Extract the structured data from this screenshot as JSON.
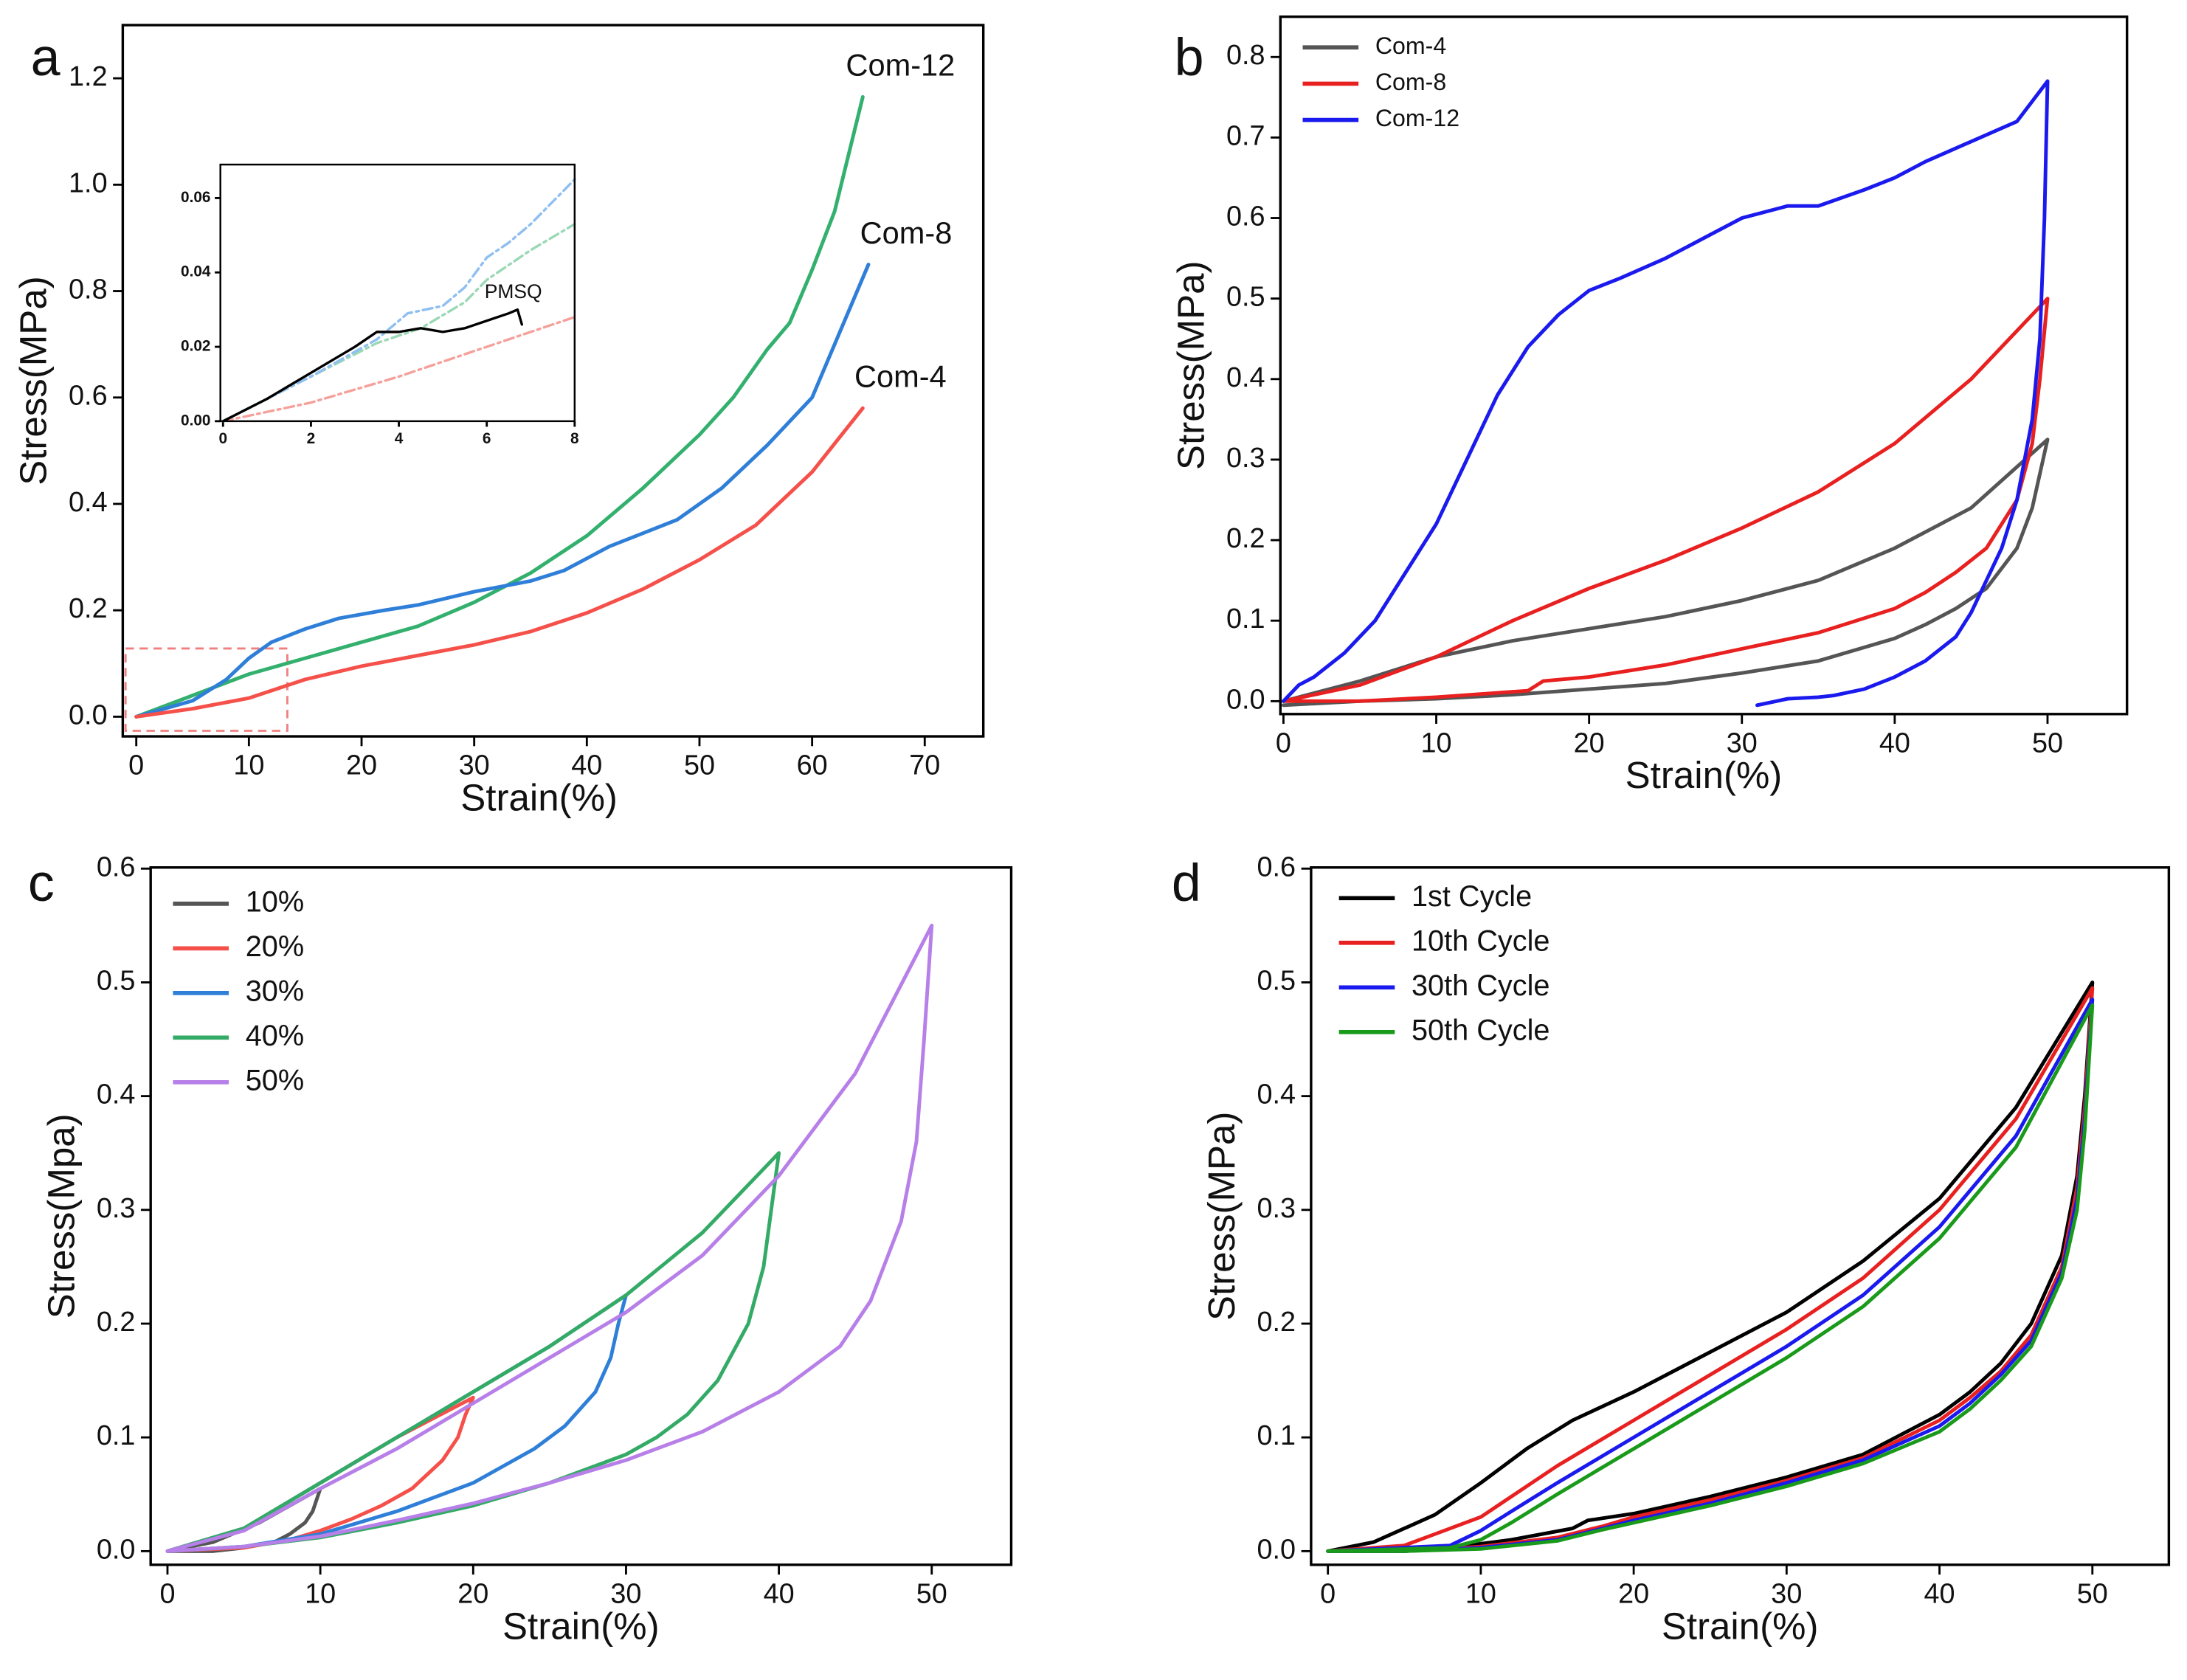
{
  "chart_data": [
    {
      "type": "line",
      "label": "a",
      "x_label": "Strain(%)",
      "y_label": "Stress(MPa)",
      "legend": "line-end",
      "xlim": [
        -1.2,
        75.2
      ],
      "ylim": [
        -0.037,
        1.3
      ],
      "xticks": [
        0,
        10,
        20,
        30,
        40,
        50,
        60,
        70
      ],
      "yticks": [
        {
          "value": 0,
          "label": "0.0"
        },
        0.2,
        0.4,
        0.6,
        0.8,
        {
          "value": 1,
          "label": "1.0"
        },
        1.2
      ],
      "series": [
        {
          "name": "Com-12",
          "color": "#33b06e",
          "x": [
            0,
            5,
            10,
            15,
            20,
            25,
            30,
            35,
            40,
            45,
            50,
            53,
            56,
            58,
            60,
            62,
            64.5
          ],
          "values": [
            0,
            0.04,
            0.08,
            0.11,
            0.14,
            0.17,
            0.215,
            0.27,
            0.34,
            0.43,
            0.53,
            0.6,
            0.69,
            0.74,
            0.84,
            0.95,
            1.165
          ]
        },
        {
          "name": "Com-8",
          "color": "#2f7fd8",
          "x": [
            0,
            5,
            8,
            10,
            12,
            15,
            18,
            22,
            25,
            30,
            35,
            38,
            42,
            45,
            48,
            52,
            56,
            60,
            65
          ],
          "values": [
            0,
            0.03,
            0.07,
            0.11,
            0.14,
            0.165,
            0.185,
            0.2,
            0.21,
            0.235,
            0.255,
            0.275,
            0.32,
            0.345,
            0.37,
            0.43,
            0.51,
            0.6,
            0.85
          ]
        },
        {
          "name": "Com-4",
          "color": "#f5504a",
          "x": [
            0,
            5,
            10,
            15,
            20,
            25,
            30,
            35,
            40,
            45,
            50,
            55,
            60,
            64.5
          ],
          "values": [
            0,
            0.015,
            0.035,
            0.07,
            0.095,
            0.115,
            0.135,
            0.16,
            0.195,
            0.24,
            0.295,
            0.36,
            0.46,
            0.58
          ]
        }
      ]
    },
    {
      "type": "line",
      "legend": "none",
      "xlim": [
        -0.06,
        8
      ],
      "ylim": [
        0,
        0.069
      ],
      "xticks": [
        0,
        2,
        4,
        6,
        8
      ],
      "yticks": [
        {
          "value": 0,
          "label": "0.00"
        },
        0.02,
        0.04,
        0.06
      ],
      "annotations": [
        {
          "text": "PMSQ"
        }
      ],
      "series": [
        {
          "color": "#f5a09a",
          "dash": "dash-dot",
          "x": [
            0,
            2,
            4,
            6,
            8
          ],
          "values": [
            0,
            0.005,
            0.012,
            0.02,
            0.028
          ]
        },
        {
          "color": "#9ad8b6",
          "dash": "dash-dot",
          "x": [
            0,
            2,
            3.5,
            4.5,
            5.5,
            6,
            7,
            8
          ],
          "values": [
            0,
            0.012,
            0.021,
            0.025,
            0.032,
            0.038,
            0.046,
            0.053
          ]
        },
        {
          "color": "#8fbff0",
          "dash": "dash-dot",
          "x": [
            0,
            2,
            3.5,
            4.2,
            5,
            5.5,
            6,
            6.5,
            7,
            8
          ],
          "values": [
            0,
            0.012,
            0.022,
            0.029,
            0.031,
            0.036,
            0.044,
            0.048,
            0.053,
            0.065
          ]
        },
        {
          "color": "#000000",
          "x": [
            0,
            1,
            2,
            3,
            3.5,
            4,
            4.5,
            5,
            5.5,
            6,
            6.5,
            6.7,
            6.8
          ],
          "values": [
            0,
            0.006,
            0.013,
            0.02,
            0.024,
            0.024,
            0.025,
            0.024,
            0.025,
            0.027,
            0.029,
            0.03,
            0.026
          ]
        }
      ]
    },
    {
      "type": "line",
      "label": "b",
      "x_label": "Strain(%)",
      "y_label": "Stress(MPa)",
      "legend": "upper left",
      "xlim": [
        -0.2,
        55.2
      ],
      "ylim": [
        -0.016,
        0.85
      ],
      "xticks": [
        0,
        10,
        20,
        30,
        40,
        50
      ],
      "yticks": [
        {
          "value": 0,
          "label": "0.0"
        },
        0.1,
        0.2,
        0.3,
        0.4,
        0.5,
        0.6,
        0.7,
        0.8
      ],
      "series": [
        {
          "name": "Com-4",
          "color": "#555555",
          "x": [
            0,
            5,
            10,
            15,
            20,
            25,
            30,
            35,
            40,
            45,
            50,
            49,
            48,
            46,
            44,
            42,
            40,
            35,
            30,
            25,
            20,
            15,
            10,
            5,
            0
          ],
          "values": [
            0,
            0.025,
            0.055,
            0.075,
            0.09,
            0.105,
            0.125,
            0.15,
            0.19,
            0.24,
            0.325,
            0.24,
            0.19,
            0.14,
            0.115,
            0.095,
            0.078,
            0.05,
            0.035,
            0.022,
            0.015,
            0.008,
            0.003,
            0,
            -0.005
          ]
        },
        {
          "name": "Com-8",
          "color": "#e82020",
          "x": [
            0,
            5,
            10,
            15,
            20,
            25,
            30,
            35,
            40,
            45,
            50,
            49.5,
            49,
            48,
            46,
            44,
            42,
            40,
            35,
            30,
            25,
            20,
            17,
            16,
            10,
            5,
            0
          ],
          "values": [
            0,
            0.02,
            0.055,
            0.1,
            0.14,
            0.175,
            0.215,
            0.26,
            0.32,
            0.4,
            0.5,
            0.4,
            0.32,
            0.25,
            0.19,
            0.16,
            0.135,
            0.115,
            0.085,
            0.065,
            0.045,
            0.03,
            0.025,
            0.013,
            0.005,
            0,
            0
          ]
        },
        {
          "name": "Com-12",
          "color": "#1a1aee",
          "x": [
            0,
            1,
            2,
            4,
            6,
            8,
            10,
            12,
            14,
            16,
            18,
            20,
            22,
            25,
            28,
            30,
            33,
            35,
            38,
            40,
            42,
            45,
            48,
            50,
            49.8,
            49.5,
            49,
            48,
            47,
            46,
            45,
            44,
            42,
            40,
            38,
            36,
            35,
            33,
            31
          ],
          "values": [
            0,
            0.02,
            0.03,
            0.06,
            0.1,
            0.16,
            0.22,
            0.3,
            0.38,
            0.44,
            0.48,
            0.51,
            0.525,
            0.55,
            0.58,
            0.6,
            0.615,
            0.615,
            0.635,
            0.65,
            0.67,
            0.695,
            0.72,
            0.77,
            0.6,
            0.45,
            0.35,
            0.25,
            0.19,
            0.15,
            0.11,
            0.08,
            0.05,
            0.03,
            0.015,
            0.007,
            0.005,
            0.003,
            -0.005
          ]
        }
      ]
    },
    {
      "type": "line",
      "label": "c",
      "x_label": "Strain(%)",
      "y_label": "Stress(Mpa)",
      "legend": "upper left",
      "xlim": [
        -1.1,
        55.2
      ],
      "ylim": [
        -0.012,
        0.601
      ],
      "xticks": [
        0,
        10,
        20,
        30,
        40,
        50
      ],
      "yticks": [
        {
          "value": 0,
          "label": "0.0"
        },
        0.1,
        0.2,
        0.3,
        0.4,
        0.5,
        0.6
      ],
      "series": [
        {
          "name": "10%",
          "color": "#555555",
          "x": [
            0,
            3,
            6,
            8,
            10,
            9.5,
            9,
            8,
            7,
            5,
            3,
            0
          ],
          "values": [
            0,
            0.008,
            0.025,
            0.04,
            0.055,
            0.035,
            0.025,
            0.015,
            0.008,
            0.003,
            0,
            0
          ]
        },
        {
          "name": "20%",
          "color": "#f5504a",
          "x": [
            0,
            5,
            10,
            15,
            20,
            19.5,
            19,
            18,
            16,
            14,
            12,
            10,
            8,
            5,
            0
          ],
          "values": [
            0,
            0.02,
            0.06,
            0.1,
            0.135,
            0.12,
            0.1,
            0.08,
            0.055,
            0.04,
            0.028,
            0.018,
            0.01,
            0.003,
            0
          ]
        },
        {
          "name": "30%",
          "color": "#2f7fd8",
          "x": [
            0,
            5,
            10,
            15,
            20,
            25,
            30,
            29.5,
            29,
            28,
            26,
            24,
            22,
            20,
            15,
            10,
            5,
            0
          ],
          "values": [
            0,
            0.02,
            0.06,
            0.1,
            0.14,
            0.18,
            0.225,
            0.2,
            0.17,
            0.14,
            0.11,
            0.09,
            0.075,
            0.06,
            0.035,
            0.015,
            0.004,
            0
          ]
        },
        {
          "name": "40%",
          "color": "#33aa66",
          "x": [
            0,
            5,
            10,
            15,
            20,
            25,
            30,
            35,
            40,
            39.5,
            39,
            38,
            36,
            34,
            32,
            30,
            25,
            20,
            15,
            10,
            5,
            0
          ],
          "values": [
            0,
            0.02,
            0.06,
            0.1,
            0.14,
            0.18,
            0.225,
            0.28,
            0.35,
            0.3,
            0.25,
            0.2,
            0.15,
            0.12,
            0.1,
            0.085,
            0.06,
            0.04,
            0.025,
            0.012,
            0.004,
            0
          ]
        },
        {
          "name": "50%",
          "color": "#b77fe8",
          "x": [
            0,
            5,
            10,
            15,
            20,
            25,
            30,
            35,
            40,
            45,
            50,
            49.5,
            49,
            48,
            46,
            44,
            42,
            40,
            35,
            30,
            25,
            20,
            15,
            10,
            5,
            0
          ],
          "values": [
            0,
            0.018,
            0.055,
            0.09,
            0.13,
            0.17,
            0.21,
            0.26,
            0.33,
            0.42,
            0.55,
            0.45,
            0.36,
            0.29,
            0.22,
            0.18,
            0.16,
            0.14,
            0.105,
            0.08,
            0.06,
            0.042,
            0.027,
            0.013,
            0.004,
            0
          ]
        }
      ]
    },
    {
      "type": "line",
      "label": "d",
      "x_label": "Strain(%)",
      "y_label": "Stress(MPa)",
      "legend": "upper left",
      "xlim": [
        -1.1,
        55
      ],
      "ylim": [
        -0.012,
        0.601
      ],
      "xticks": [
        0,
        10,
        20,
        30,
        40,
        50
      ],
      "yticks": [
        {
          "value": 0,
          "label": "0.0"
        },
        0.1,
        0.2,
        0.3,
        0.4,
        0.5,
        0.6
      ],
      "series": [
        {
          "name": "1st Cycle",
          "color": "#000000",
          "x": [
            0,
            3,
            5,
            7,
            10,
            13,
            16,
            20,
            25,
            30,
            35,
            40,
            45,
            50,
            49.5,
            49,
            48,
            46,
            44,
            42,
            40,
            35,
            30,
            25,
            20,
            17,
            16,
            12,
            8,
            5,
            0
          ],
          "values": [
            0,
            0.008,
            0.02,
            0.032,
            0.06,
            0.09,
            0.115,
            0.14,
            0.175,
            0.21,
            0.255,
            0.31,
            0.39,
            0.5,
            0.4,
            0.33,
            0.26,
            0.2,
            0.165,
            0.14,
            0.12,
            0.085,
            0.065,
            0.048,
            0.033,
            0.027,
            0.02,
            0.01,
            0.003,
            0,
            0
          ]
        },
        {
          "name": "10th Cycle",
          "color": "#e82020",
          "x": [
            0,
            5,
            7,
            10,
            15,
            20,
            25,
            30,
            35,
            40,
            45,
            50,
            49.5,
            49,
            48,
            46,
            44,
            42,
            40,
            35,
            30,
            25,
            20,
            18,
            15,
            10,
            5,
            0
          ],
          "values": [
            0,
            0.005,
            0.015,
            0.03,
            0.075,
            0.115,
            0.155,
            0.195,
            0.24,
            0.3,
            0.38,
            0.495,
            0.39,
            0.32,
            0.25,
            0.19,
            0.158,
            0.135,
            0.115,
            0.082,
            0.062,
            0.045,
            0.03,
            0.022,
            0.012,
            0.004,
            0,
            0
          ]
        },
        {
          "name": "30th Cycle",
          "color": "#1a1aee",
          "x": [
            0,
            8,
            10,
            12,
            15,
            20,
            25,
            30,
            35,
            40,
            45,
            50,
            49.5,
            49,
            48,
            46,
            44,
            42,
            40,
            35,
            30,
            25,
            20,
            18,
            15,
            10,
            5,
            0
          ],
          "values": [
            0,
            0.005,
            0.018,
            0.035,
            0.06,
            0.1,
            0.14,
            0.18,
            0.225,
            0.285,
            0.365,
            0.485,
            0.38,
            0.31,
            0.245,
            0.185,
            0.155,
            0.13,
            0.11,
            0.08,
            0.06,
            0.042,
            0.027,
            0.02,
            0.01,
            0.003,
            0,
            0
          ]
        },
        {
          "name": "50th Cycle",
          "color": "#1a9a1a",
          "x": [
            0,
            8,
            10,
            12,
            15,
            20,
            25,
            30,
            35,
            40,
            45,
            50,
            49.5,
            49,
            48,
            46,
            44,
            42,
            40,
            35,
            30,
            25,
            20,
            18,
            15,
            10,
            5,
            0
          ],
          "values": [
            0,
            0.003,
            0.01,
            0.025,
            0.05,
            0.09,
            0.13,
            0.17,
            0.215,
            0.275,
            0.355,
            0.48,
            0.37,
            0.3,
            0.24,
            0.18,
            0.15,
            0.125,
            0.105,
            0.077,
            0.057,
            0.04,
            0.025,
            0.019,
            0.009,
            0.002,
            0,
            0
          ]
        }
      ]
    }
  ]
}
